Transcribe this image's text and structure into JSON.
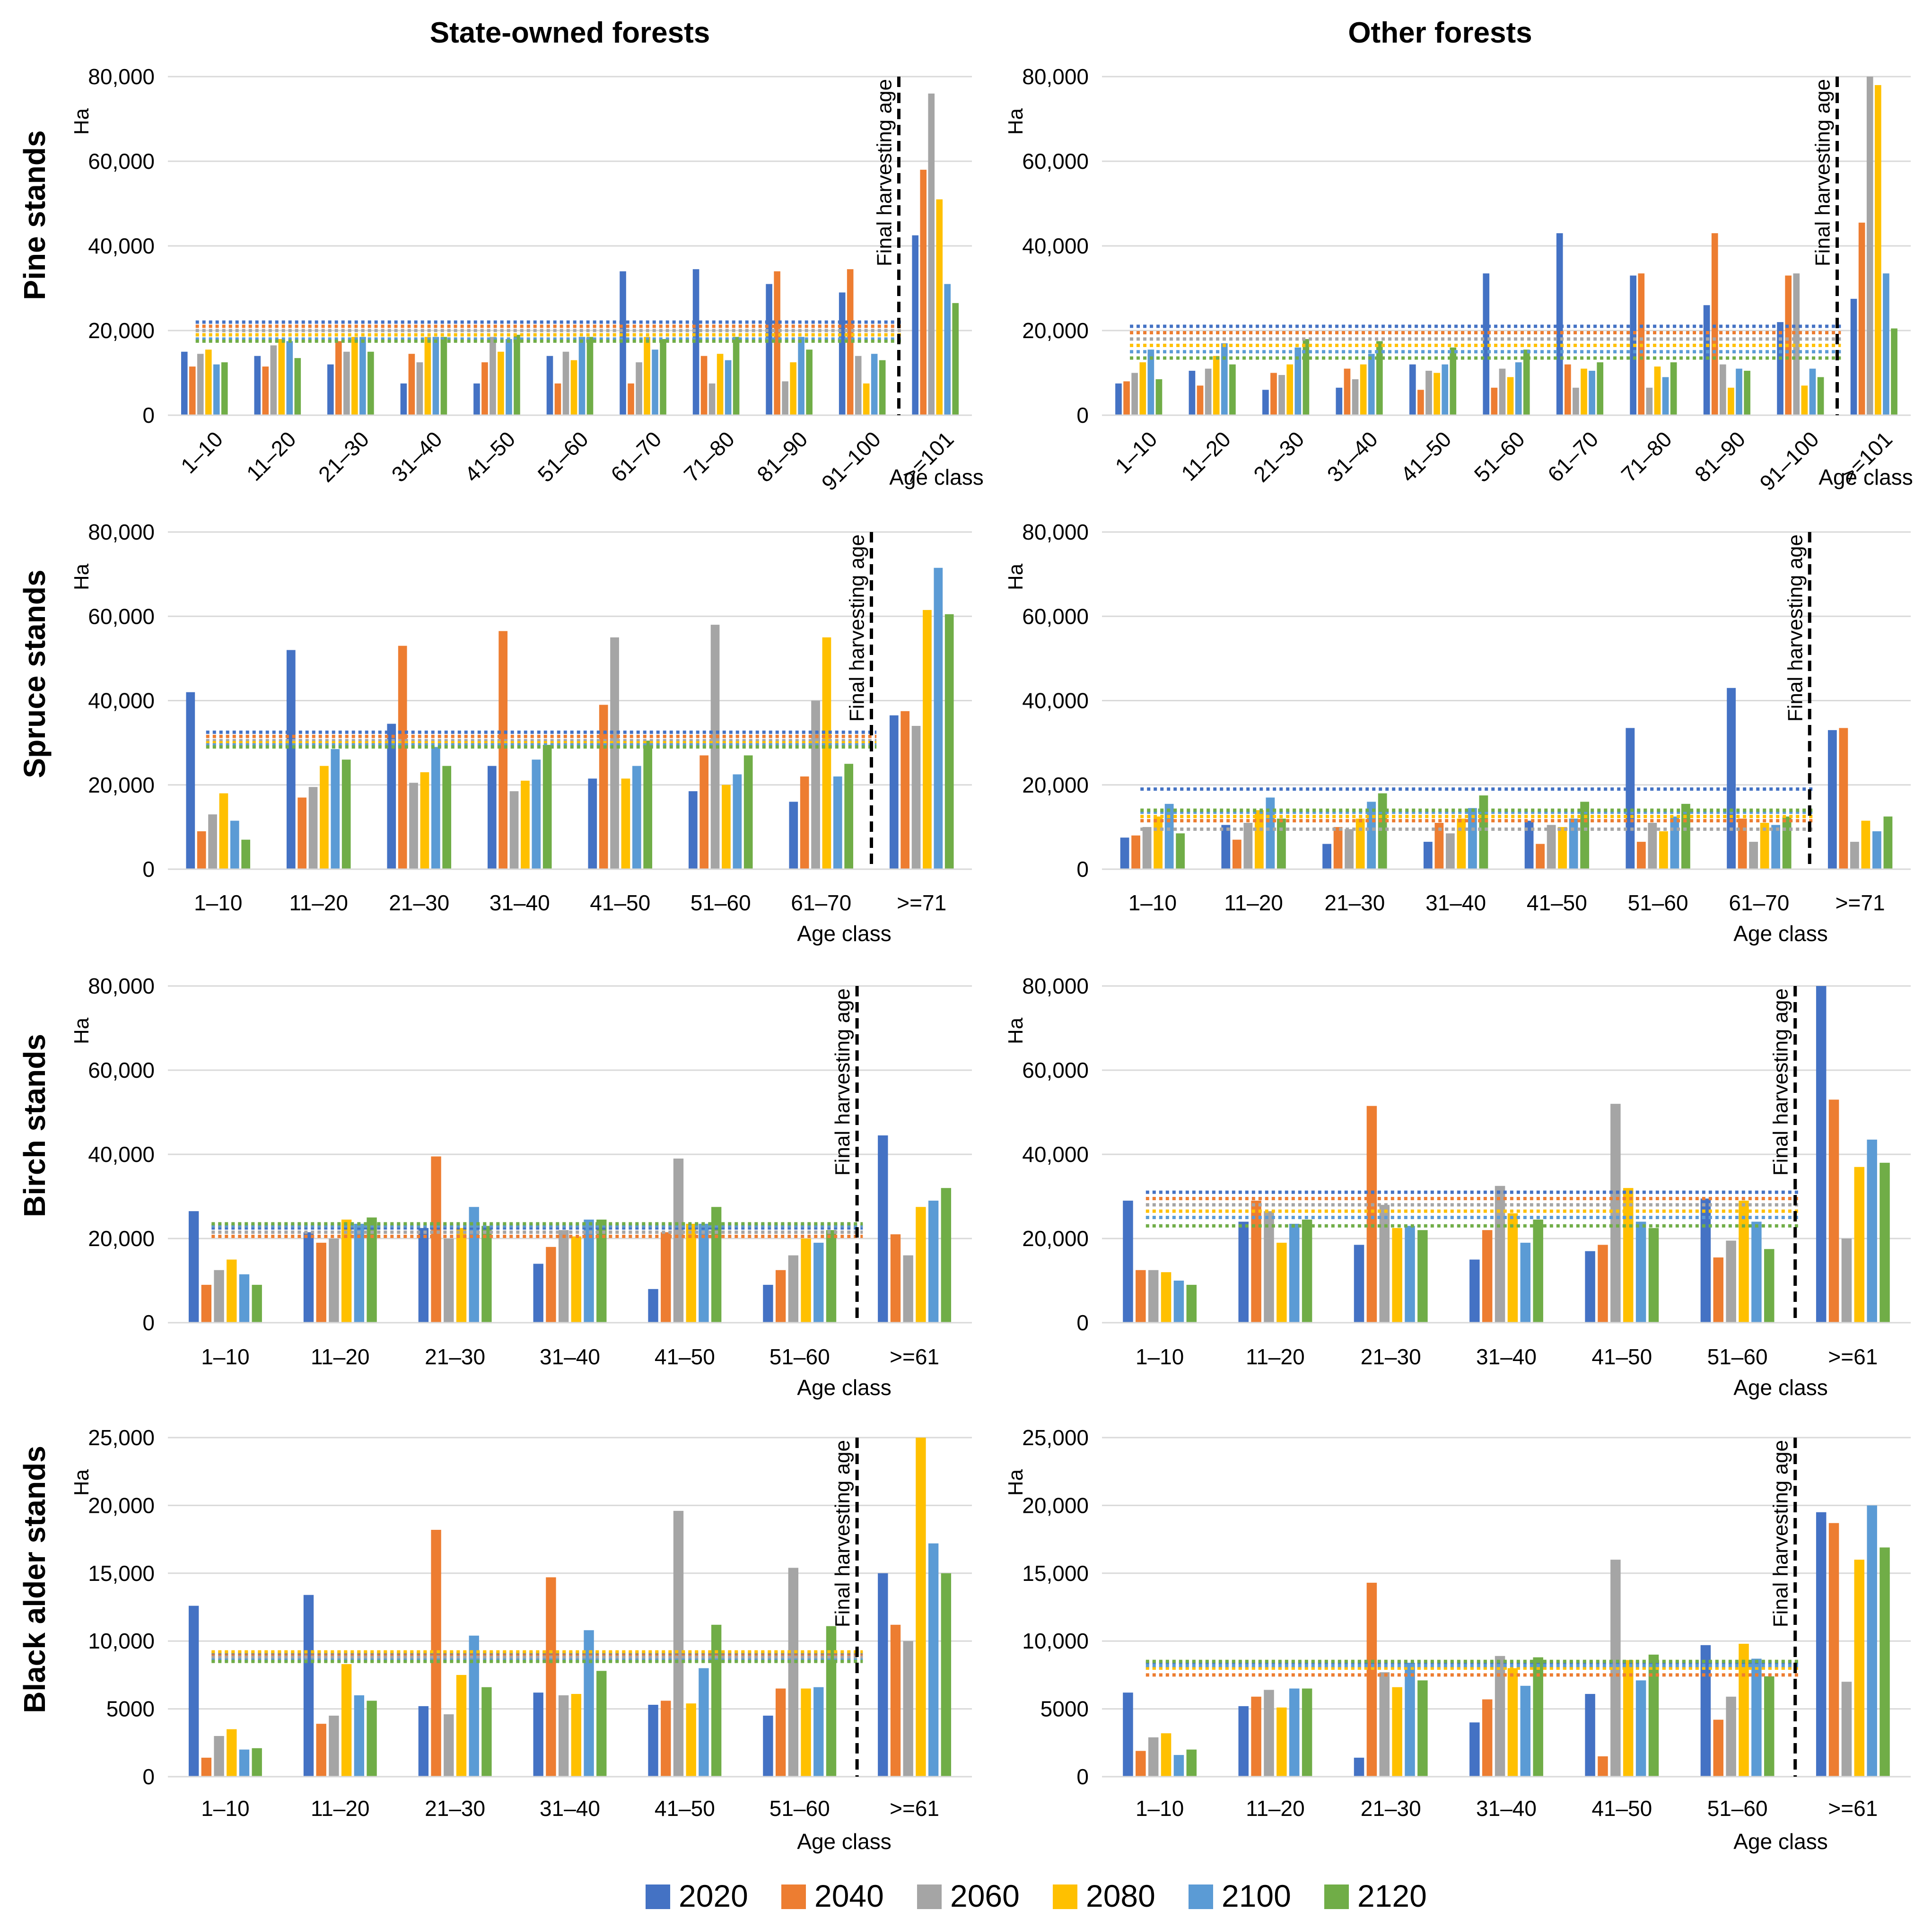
{
  "column_titles": [
    "State-owned forests",
    "Other forests"
  ],
  "row_titles": [
    "Pine stands",
    "Spruce stands",
    "Birch stands",
    "Black alder stands"
  ],
  "y_axis_label": "Ha",
  "x_axis_label": "Age class",
  "vertical_line_label": "Final harvesting age",
  "legend": [
    "2020",
    "2040",
    "2060",
    "2080",
    "2100",
    "2120"
  ],
  "colors": [
    "#4472c4",
    "#ed7d31",
    "#a5a5a5",
    "#ffc000",
    "#5b9bd5",
    "#70ad47"
  ],
  "chart_data": [
    {
      "type": "bar",
      "title": "Pine stands - State-owned forests",
      "categories": [
        "1–10",
        "11–20",
        "21–30",
        "31–40",
        "41–50",
        "51–60",
        "61–70",
        "71–80",
        "81–90",
        "91–100",
        ">=101"
      ],
      "ylim": [
        0,
        80000
      ],
      "yticks": [
        "0",
        "20,000",
        "40,000",
        "60,000",
        "80,000"
      ],
      "rotated_ticks": true,
      "harvest_after_index": 9,
      "series": [
        {
          "name": "2020",
          "values": [
            15000,
            14000,
            12000,
            7500,
            7500,
            14000,
            34000,
            34500,
            31000,
            29000,
            42500
          ]
        },
        {
          "name": "2040",
          "values": [
            11500,
            11500,
            17500,
            14500,
            12500,
            7500,
            7500,
            14000,
            34000,
            34500,
            58000
          ]
        },
        {
          "name": "2060",
          "values": [
            14500,
            16500,
            15000,
            12500,
            18500,
            15000,
            12500,
            7500,
            8000,
            14000,
            76000
          ]
        },
        {
          "name": "2080",
          "values": [
            15500,
            18000,
            18500,
            18500,
            15000,
            13000,
            18500,
            14500,
            12500,
            7500,
            51000
          ]
        },
        {
          "name": "2100",
          "values": [
            12000,
            17500,
            18500,
            18500,
            18000,
            18500,
            15500,
            13000,
            18500,
            14500,
            31000
          ]
        },
        {
          "name": "2120",
          "values": [
            12500,
            13500,
            15000,
            18500,
            19000,
            18500,
            18000,
            18500,
            15500,
            13000,
            26500
          ]
        }
      ],
      "reference_levels": [
        22000,
        21000,
        20000,
        19000,
        18000,
        17500
      ]
    },
    {
      "type": "bar",
      "title": "Pine stands - Other forests",
      "categories": [
        "1–10",
        "11–20",
        "21–30",
        "31–40",
        "41–50",
        "51–60",
        "61–70",
        "71–80",
        "81–90",
        "91–100",
        ">=101"
      ],
      "ylim": [
        0,
        80000
      ],
      "yticks": [
        "0",
        "20,000",
        "40,000",
        "60,000",
        "80,000"
      ],
      "rotated_ticks": true,
      "harvest_after_index": 9,
      "series": [
        {
          "name": "2020",
          "values": [
            7500,
            10500,
            6000,
            6500,
            12000,
            33500,
            43000,
            33000,
            26000,
            22000,
            27500
          ]
        },
        {
          "name": "2040",
          "values": [
            8000,
            7000,
            10000,
            11000,
            6000,
            6500,
            12000,
            33500,
            43000,
            33000,
            45500
          ]
        },
        {
          "name": "2060",
          "values": [
            10000,
            11000,
            9500,
            8500,
            10500,
            11000,
            6500,
            6500,
            12000,
            33500,
            80000
          ]
        },
        {
          "name": "2080",
          "values": [
            12500,
            14000,
            12000,
            12000,
            10000,
            9000,
            11000,
            11500,
            6500,
            7000,
            78000
          ]
        },
        {
          "name": "2100",
          "values": [
            15500,
            17000,
            16000,
            14500,
            12000,
            12500,
            10500,
            9000,
            11000,
            11000,
            33500
          ]
        },
        {
          "name": "2120",
          "values": [
            8500,
            12000,
            18000,
            17500,
            16000,
            15500,
            12500,
            12500,
            10500,
            9000,
            20500
          ]
        }
      ],
      "reference_levels": [
        21000,
        19500,
        18000,
        16500,
        15000,
        13500
      ]
    },
    {
      "type": "bar",
      "title": "Spruce stands - State-owned forests",
      "categories": [
        "1–10",
        "11–20",
        "21–30",
        "31–40",
        "41–50",
        "51–60",
        "61–70",
        ">=71"
      ],
      "ylim": [
        0,
        80000
      ],
      "yticks": [
        "0",
        "20,000",
        "40,000",
        "60,000",
        "80,000"
      ],
      "rotated_ticks": false,
      "harvest_after_index": 6,
      "series": [
        {
          "name": "2020",
          "values": [
            42000,
            52000,
            34500,
            24500,
            21500,
            18500,
            16000,
            36500
          ]
        },
        {
          "name": "2040",
          "values": [
            9000,
            17000,
            53000,
            56500,
            39000,
            27000,
            22000,
            37500
          ]
        },
        {
          "name": "2060",
          "values": [
            13000,
            19500,
            20500,
            18500,
            55000,
            58000,
            40000,
            34000
          ]
        },
        {
          "name": "2080",
          "values": [
            18000,
            24500,
            23000,
            21000,
            21500,
            20000,
            55000,
            61500
          ]
        },
        {
          "name": "2100",
          "values": [
            11500,
            28500,
            29000,
            26000,
            24500,
            22500,
            22000,
            71500
          ]
        },
        {
          "name": "2120",
          "values": [
            7000,
            26000,
            24500,
            29500,
            30500,
            27000,
            25000,
            60500
          ]
        }
      ],
      "reference_levels": [
        32500,
        31500,
        30500,
        30000,
        29500,
        29000
      ]
    },
    {
      "type": "bar",
      "title": "Spruce stands - Other forests",
      "categories": [
        "1–10",
        "11–20",
        "21–30",
        "31–40",
        "41–50",
        "51–60",
        "61–70",
        ">=71"
      ],
      "ylim": [
        0,
        80000
      ],
      "yticks": [
        "0",
        "20,000",
        "40,000",
        "60,000",
        "80,000"
      ],
      "rotated_ticks": false,
      "harvest_after_index": 6,
      "series": [
        {
          "name": "2020",
          "values": [
            7500,
            10500,
            6000,
            6500,
            11500,
            33500,
            43000,
            33000
          ]
        },
        {
          "name": "2040",
          "values": [
            8000,
            7000,
            10000,
            11000,
            6000,
            6500,
            12000,
            33500
          ]
        },
        {
          "name": "2060",
          "values": [
            10000,
            11000,
            9500,
            8500,
            10500,
            11000,
            6500,
            6500
          ]
        },
        {
          "name": "2080",
          "values": [
            12500,
            14000,
            12000,
            12000,
            10000,
            9000,
            11000,
            11500
          ]
        },
        {
          "name": "2100",
          "values": [
            15500,
            17000,
            16000,
            14500,
            12000,
            12500,
            10500,
            9000
          ]
        },
        {
          "name": "2120",
          "values": [
            8500,
            12000,
            18000,
            17500,
            16000,
            15500,
            12500,
            12500
          ]
        }
      ],
      "reference_levels": [
        19000,
        11500,
        9500,
        12500,
        13500,
        14000
      ]
    },
    {
      "type": "bar",
      "title": "Birch stands - State-owned forests",
      "categories": [
        "1–10",
        "11–20",
        "21–30",
        "31–40",
        "41–50",
        "51–60",
        ">=61"
      ],
      "ylim": [
        0,
        80000
      ],
      "yticks": [
        "0",
        "20,000",
        "40,000",
        "60,000",
        "80,000"
      ],
      "rotated_ticks": false,
      "harvest_after_index": 5,
      "series": [
        {
          "name": "2020",
          "values": [
            26500,
            21500,
            22500,
            14000,
            8000,
            9000,
            44500
          ]
        },
        {
          "name": "2040",
          "values": [
            9000,
            19000,
            39500,
            18000,
            21500,
            12500,
            21000
          ]
        },
        {
          "name": "2060",
          "values": [
            12500,
            20000,
            20000,
            22000,
            39000,
            16000,
            16000
          ]
        },
        {
          "name": "2080",
          "values": [
            15000,
            24500,
            22500,
            20500,
            23500,
            20000,
            27500
          ]
        },
        {
          "name": "2100",
          "values": [
            11500,
            23500,
            27500,
            24500,
            23500,
            19000,
            29000
          ]
        },
        {
          "name": "2120",
          "values": [
            9000,
            25000,
            23000,
            24500,
            27500,
            22000,
            32000
          ]
        }
      ],
      "reference_levels": [
        22500,
        20500,
        21500,
        23000,
        23000,
        23500
      ]
    },
    {
      "type": "bar",
      "title": "Birch stands - Other forests",
      "categories": [
        "1–10",
        "11–20",
        "21–30",
        "31–40",
        "41–50",
        "51–60",
        ">=61"
      ],
      "ylim": [
        0,
        80000
      ],
      "yticks": [
        "0",
        "20,000",
        "40,000",
        "60,000",
        "80,000"
      ],
      "rotated_ticks": false,
      "harvest_after_index": 5,
      "series": [
        {
          "name": "2020",
          "values": [
            29000,
            24000,
            18500,
            15000,
            17000,
            29500,
            80000
          ]
        },
        {
          "name": "2040",
          "values": [
            12500,
            29000,
            51500,
            22000,
            18500,
            15500,
            53000
          ]
        },
        {
          "name": "2060",
          "values": [
            12500,
            26500,
            28000,
            32500,
            52000,
            19500,
            20000
          ]
        },
        {
          "name": "2080",
          "values": [
            12000,
            19000,
            22500,
            26000,
            32000,
            29000,
            37000
          ]
        },
        {
          "name": "2100",
          "values": [
            10000,
            23500,
            23000,
            19000,
            24000,
            24000,
            43500
          ]
        },
        {
          "name": "2120",
          "values": [
            9000,
            24500,
            22000,
            24500,
            22500,
            17500,
            38000
          ]
        }
      ],
      "reference_levels": [
        31000,
        29500,
        28000,
        26500,
        25000,
        23000
      ]
    },
    {
      "type": "bar",
      "title": "Black alder stands - State-owned forests",
      "categories": [
        "1–10",
        "11–20",
        "21–30",
        "31–40",
        "41–50",
        "51–60",
        ">=61"
      ],
      "ylim": [
        0,
        25000
      ],
      "yticks": [
        "0",
        "5000",
        "10,000",
        "15,000",
        "20,000",
        "25,000"
      ],
      "rotated_ticks": false,
      "harvest_after_index": 5,
      "series": [
        {
          "name": "2020",
          "values": [
            12600,
            13400,
            5200,
            6200,
            5300,
            4500,
            15000
          ]
        },
        {
          "name": "2040",
          "values": [
            1400,
            3900,
            18200,
            14700,
            5600,
            6500,
            11200
          ]
        },
        {
          "name": "2060",
          "values": [
            3000,
            4500,
            4600,
            6000,
            19600,
            15400,
            10000
          ]
        },
        {
          "name": "2080",
          "values": [
            3500,
            8300,
            7500,
            6100,
            5400,
            6500,
            25000
          ]
        },
        {
          "name": "2100",
          "values": [
            2000,
            6000,
            10400,
            10800,
            8000,
            6600,
            17200
          ]
        },
        {
          "name": "2120",
          "values": [
            2100,
            5600,
            6600,
            7800,
            11200,
            11100,
            15000
          ]
        }
      ],
      "reference_levels": [
        9100,
        8900,
        8800,
        9200,
        8600,
        8500
      ]
    },
    {
      "type": "bar",
      "title": "Black alder stands - Other forests",
      "categories": [
        "1–10",
        "11–20",
        "21–30",
        "31–40",
        "41–50",
        "51–60",
        ">=61"
      ],
      "ylim": [
        0,
        25000
      ],
      "yticks": [
        "0",
        "5000",
        "10,000",
        "15,000",
        "20,000",
        "25,000"
      ],
      "rotated_ticks": false,
      "harvest_after_index": 5,
      "series": [
        {
          "name": "2020",
          "values": [
            6200,
            5200,
            1400,
            4000,
            6100,
            9700,
            19500
          ]
        },
        {
          "name": "2040",
          "values": [
            1900,
            5900,
            14300,
            5700,
            1500,
            4200,
            18700
          ]
        },
        {
          "name": "2060",
          "values": [
            2900,
            6400,
            7700,
            8900,
            16000,
            5900,
            7000
          ]
        },
        {
          "name": "2080",
          "values": [
            3200,
            5100,
            6600,
            8000,
            8600,
            9800,
            16000
          ]
        },
        {
          "name": "2100",
          "values": [
            1600,
            6500,
            8400,
            6700,
            7100,
            8700,
            20000
          ]
        },
        {
          "name": "2120",
          "values": [
            2000,
            6500,
            7100,
            8800,
            9000,
            7400,
            16900
          ]
        }
      ],
      "reference_levels": [
        8400,
        7500,
        8000,
        8000,
        8200,
        8500
      ]
    }
  ]
}
